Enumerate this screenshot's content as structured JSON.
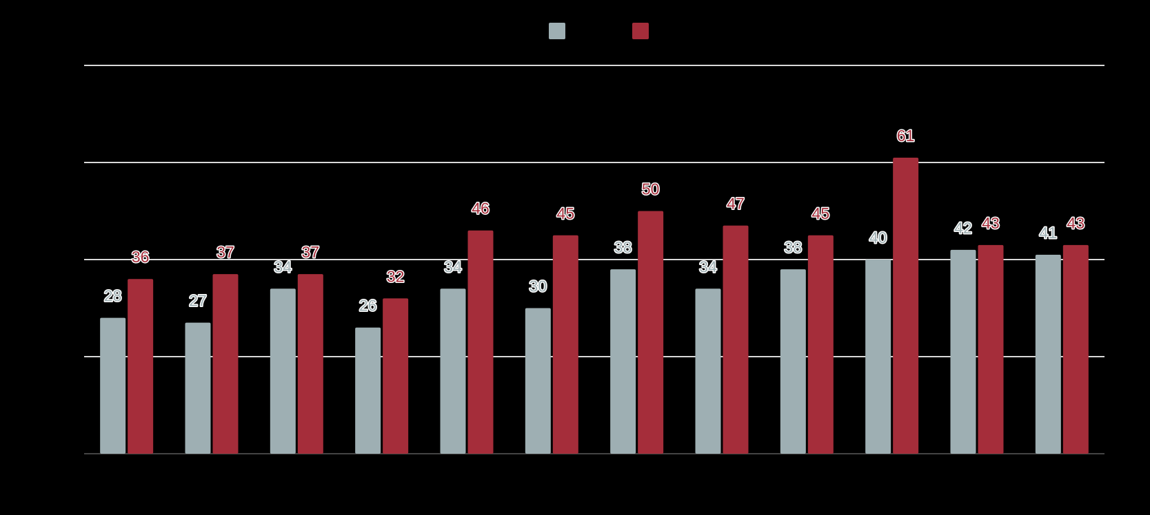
{
  "chart_data": {
    "type": "bar",
    "categories": [
      "",
      "",
      "",
      "",
      "",
      "",
      "",
      "",
      "",
      "",
      "",
      ""
    ],
    "series": [
      {
        "name": "",
        "color": "#9eafb3",
        "values": [
          28,
          27,
          34,
          26,
          34,
          30,
          38,
          34,
          38,
          40,
          42,
          41
        ]
      },
      {
        "name": "",
        "color": "#a52d3a",
        "values": [
          36,
          37,
          37,
          32,
          46,
          45,
          50,
          47,
          45,
          61,
          43,
          43
        ]
      }
    ],
    "title": "",
    "xlabel": "",
    "ylabel": "",
    "ylim": [
      0,
      80
    ],
    "yticks": [
      0,
      20,
      40,
      60,
      80
    ],
    "grid": true,
    "legend": "top-center",
    "colors": {
      "background": "#000000",
      "gridline": "#d9d9d9",
      "axis": "#444444"
    }
  }
}
